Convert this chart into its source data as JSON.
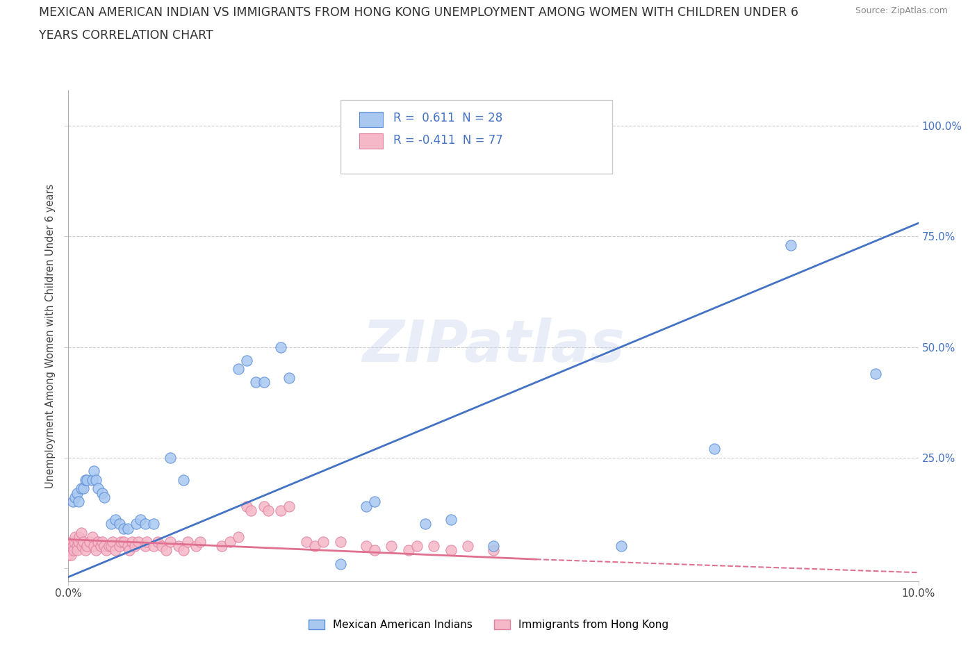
{
  "title": "MEXICAN AMERICAN INDIAN VS IMMIGRANTS FROM HONG KONG UNEMPLOYMENT AMONG WOMEN WITH CHILDREN UNDER 6\nYEARS CORRELATION CHART",
  "source": "Source: ZipAtlas.com",
  "ylabel": "Unemployment Among Women with Children Under 6 years",
  "yticks": [
    0,
    25,
    50,
    75,
    100
  ],
  "ytick_labels": [
    "",
    "25.0%",
    "50.0%",
    "75.0%",
    "100.0%"
  ],
  "watermark": "ZIPatlas",
  "blue_color": "#a8c8f0",
  "blue_edge_color": "#5b8dd9",
  "blue_line_color": "#4472C4",
  "pink_color": "#f5b8c8",
  "pink_edge_color": "#e080a0",
  "pink_line_color": "#e07090",
  "background_color": "#ffffff",
  "blue_scatter": [
    [
      0.05,
      15
    ],
    [
      0.08,
      16
    ],
    [
      0.1,
      17
    ],
    [
      0.12,
      15
    ],
    [
      0.15,
      18
    ],
    [
      0.18,
      18
    ],
    [
      0.2,
      20
    ],
    [
      0.22,
      20
    ],
    [
      0.28,
      20
    ],
    [
      0.3,
      22
    ],
    [
      0.32,
      20
    ],
    [
      0.35,
      18
    ],
    [
      0.4,
      17
    ],
    [
      0.42,
      16
    ],
    [
      0.5,
      10
    ],
    [
      0.55,
      11
    ],
    [
      0.6,
      10
    ],
    [
      0.65,
      9
    ],
    [
      0.7,
      9
    ],
    [
      0.8,
      10
    ],
    [
      0.85,
      11
    ],
    [
      0.9,
      10
    ],
    [
      1.0,
      10
    ],
    [
      1.2,
      25
    ],
    [
      1.35,
      20
    ],
    [
      2.0,
      45
    ],
    [
      2.1,
      47
    ],
    [
      2.2,
      42
    ],
    [
      2.3,
      42
    ],
    [
      2.5,
      50
    ],
    [
      2.6,
      43
    ],
    [
      3.2,
      1
    ],
    [
      3.5,
      14
    ],
    [
      3.6,
      15
    ],
    [
      4.2,
      10
    ],
    [
      4.5,
      11
    ],
    [
      5.0,
      5
    ],
    [
      6.5,
      5
    ],
    [
      7.6,
      27
    ],
    [
      8.5,
      73
    ],
    [
      9.5,
      44
    ]
  ],
  "pink_scatter": [
    [
      0.0,
      5
    ],
    [
      0.0,
      4
    ],
    [
      0.0,
      3
    ],
    [
      0.02,
      5
    ],
    [
      0.03,
      4
    ],
    [
      0.03,
      3
    ],
    [
      0.04,
      6
    ],
    [
      0.05,
      5
    ],
    [
      0.06,
      4
    ],
    [
      0.07,
      6
    ],
    [
      0.08,
      7
    ],
    [
      0.1,
      5
    ],
    [
      0.1,
      4
    ],
    [
      0.12,
      6
    ],
    [
      0.13,
      7
    ],
    [
      0.15,
      8
    ],
    [
      0.16,
      5
    ],
    [
      0.18,
      6
    ],
    [
      0.2,
      4
    ],
    [
      0.22,
      5
    ],
    [
      0.25,
      6
    ],
    [
      0.28,
      7
    ],
    [
      0.3,
      5
    ],
    [
      0.32,
      4
    ],
    [
      0.35,
      6
    ],
    [
      0.38,
      5
    ],
    [
      0.4,
      6
    ],
    [
      0.42,
      5
    ],
    [
      0.45,
      4
    ],
    [
      0.48,
      5
    ],
    [
      0.5,
      5
    ],
    [
      0.52,
      6
    ],
    [
      0.55,
      4
    ],
    [
      0.6,
      5
    ],
    [
      0.62,
      6
    ],
    [
      0.65,
      6
    ],
    [
      0.7,
      5
    ],
    [
      0.72,
      4
    ],
    [
      0.75,
      6
    ],
    [
      0.78,
      5
    ],
    [
      0.82,
      6
    ],
    [
      0.9,
      5
    ],
    [
      0.92,
      6
    ],
    [
      1.0,
      5
    ],
    [
      1.05,
      6
    ],
    [
      1.1,
      5
    ],
    [
      1.15,
      4
    ],
    [
      1.2,
      6
    ],
    [
      1.3,
      5
    ],
    [
      1.35,
      4
    ],
    [
      1.4,
      6
    ],
    [
      1.5,
      5
    ],
    [
      1.55,
      6
    ],
    [
      1.8,
      5
    ],
    [
      1.9,
      6
    ],
    [
      2.0,
      7
    ],
    [
      2.1,
      14
    ],
    [
      2.15,
      13
    ],
    [
      2.3,
      14
    ],
    [
      2.35,
      13
    ],
    [
      2.5,
      13
    ],
    [
      2.6,
      14
    ],
    [
      2.8,
      6
    ],
    [
      2.9,
      5
    ],
    [
      3.0,
      6
    ],
    [
      3.2,
      6
    ],
    [
      3.5,
      5
    ],
    [
      3.6,
      4
    ],
    [
      3.8,
      5
    ],
    [
      4.0,
      4
    ],
    [
      4.1,
      5
    ],
    [
      4.3,
      5
    ],
    [
      4.5,
      4
    ],
    [
      4.7,
      5
    ],
    [
      5.0,
      4
    ]
  ],
  "blue_line": [
    [
      0.0,
      -2
    ],
    [
      10.0,
      78
    ]
  ],
  "pink_line_solid": [
    [
      0.0,
      6.5
    ],
    [
      5.5,
      2.0
    ]
  ],
  "pink_line_dash": [
    [
      5.5,
      2.0
    ],
    [
      10.0,
      -1.0
    ]
  ],
  "xmin": 0.0,
  "xmax": 10.0,
  "ymin": -3,
  "ymax": 108
}
